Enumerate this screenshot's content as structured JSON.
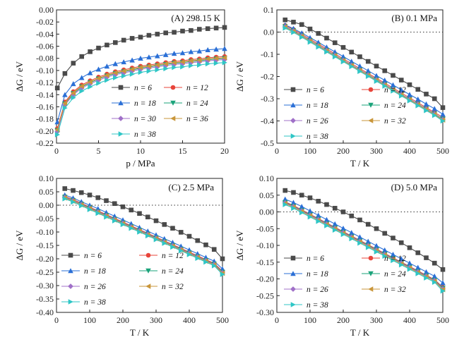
{
  "series_colors": {
    "n6": "#4a4a4a",
    "n12": "#e8443a",
    "n18": "#2a6fd6",
    "n24": "#1aa37a",
    "n26": "#a070c8",
    "n30": "#a070c8",
    "n32": "#c9963a",
    "n36": "#c9963a",
    "n38": "#2fc6c6"
  },
  "chart_data": [
    {
      "type": "line",
      "title": "(A) 298.15 K",
      "xlabel": "p / MPa",
      "ylabel": "ΔG / eV",
      "xlim": [
        0,
        20
      ],
      "ylim": [
        -0.22,
        0.0
      ],
      "xticks": [
        "0",
        "5",
        "10",
        "15",
        "20"
      ],
      "yticks": [
        "-0.22",
        "-0.20",
        "-0.18",
        "-0.16",
        "-0.14",
        "-0.12",
        "-0.10",
        "-0.08",
        "-0.06",
        "-0.04",
        "-0.02",
        "0.00"
      ],
      "x": [
        0.1,
        1,
        2,
        3,
        4,
        5,
        6,
        7,
        8,
        9,
        10,
        11,
        12,
        13,
        14,
        15,
        16,
        17,
        18,
        19,
        20
      ],
      "series": [
        {
          "name": "n = 6",
          "marker": "square",
          "values": [
            -0.129,
            -0.105,
            -0.088,
            -0.077,
            -0.069,
            -0.063,
            -0.058,
            -0.054,
            -0.05,
            -0.047,
            -0.045,
            -0.042,
            -0.04,
            -0.038,
            -0.037,
            -0.035,
            -0.034,
            -0.032,
            -0.031,
            -0.03,
            -0.029
          ]
        },
        {
          "name": "n = 12",
          "marker": "circle",
          "values": [
            -0.196,
            -0.152,
            -0.135,
            -0.124,
            -0.117,
            -0.111,
            -0.106,
            -0.102,
            -0.099,
            -0.096,
            -0.093,
            -0.091,
            -0.089,
            -0.087,
            -0.085,
            -0.084,
            -0.082,
            -0.081,
            -0.079,
            -0.078,
            -0.077
          ]
        },
        {
          "name": "n = 18",
          "marker": "triangle-up",
          "values": [
            -0.185,
            -0.14,
            -0.122,
            -0.112,
            -0.104,
            -0.098,
            -0.093,
            -0.089,
            -0.086,
            -0.083,
            -0.08,
            -0.078,
            -0.076,
            -0.074,
            -0.072,
            -0.071,
            -0.069,
            -0.068,
            -0.066,
            -0.065,
            -0.064
          ]
        },
        {
          "name": "n = 24",
          "marker": "triangle-down",
          "values": [
            -0.199,
            -0.155,
            -0.138,
            -0.127,
            -0.12,
            -0.114,
            -0.109,
            -0.105,
            -0.102,
            -0.099,
            -0.096,
            -0.094,
            -0.092,
            -0.09,
            -0.088,
            -0.087,
            -0.085,
            -0.084,
            -0.082,
            -0.081,
            -0.08
          ]
        },
        {
          "name": "n = 30",
          "marker": "diamond",
          "values": [
            -0.201,
            -0.157,
            -0.14,
            -0.129,
            -0.122,
            -0.116,
            -0.111,
            -0.107,
            -0.104,
            -0.101,
            -0.098,
            -0.096,
            -0.094,
            -0.092,
            -0.09,
            -0.089,
            -0.087,
            -0.086,
            -0.084,
            -0.083,
            -0.082
          ]
        },
        {
          "name": "n = 36",
          "marker": "triangle-left",
          "values": [
            -0.198,
            -0.154,
            -0.137,
            -0.126,
            -0.119,
            -0.113,
            -0.108,
            -0.104,
            -0.101,
            -0.098,
            -0.095,
            -0.093,
            -0.091,
            -0.089,
            -0.087,
            -0.086,
            -0.084,
            -0.083,
            -0.081,
            -0.08,
            -0.079
          ]
        },
        {
          "name": "n = 38",
          "marker": "triangle-right",
          "values": [
            -0.206,
            -0.162,
            -0.145,
            -0.134,
            -0.127,
            -0.121,
            -0.116,
            -0.112,
            -0.109,
            -0.106,
            -0.103,
            -0.101,
            -0.099,
            -0.097,
            -0.095,
            -0.094,
            -0.092,
            -0.091,
            -0.089,
            -0.088,
            -0.087
          ]
        }
      ],
      "legend_order": [
        0,
        1,
        2,
        3,
        4,
        5,
        6
      ],
      "reference_line": null
    },
    {
      "type": "line",
      "title": "(B) 0.1 MPa",
      "xlabel": "T / K",
      "ylabel": "ΔG / eV",
      "xlim": [
        0,
        500
      ],
      "ylim": [
        -0.5,
        0.1
      ],
      "xticks": [
        "0",
        "100",
        "200",
        "300",
        "400",
        "500"
      ],
      "yticks": [
        "-0.5",
        "-0.4",
        "-0.3",
        "-0.2",
        "-0.1",
        "0.0",
        "0.1"
      ],
      "x": [
        25,
        50,
        75,
        100,
        125,
        150,
        175,
        200,
        225,
        250,
        275,
        300,
        325,
        350,
        375,
        400,
        425,
        450,
        475,
        500
      ],
      "series": [
        {
          "name": "n = 6",
          "marker": "square",
          "values": [
            0.055,
            0.045,
            0.034,
            0.014,
            -0.006,
            -0.027,
            -0.048,
            -0.069,
            -0.09,
            -0.111,
            -0.132,
            -0.153,
            -0.174,
            -0.195,
            -0.216,
            -0.237,
            -0.258,
            -0.279,
            -0.3,
            -0.34
          ]
        },
        {
          "name": "n = 12",
          "marker": "circle",
          "values": [
            0.03,
            0.012,
            -0.01,
            -0.032,
            -0.054,
            -0.076,
            -0.098,
            -0.12,
            -0.142,
            -0.164,
            -0.186,
            -0.208,
            -0.23,
            -0.252,
            -0.274,
            -0.296,
            -0.318,
            -0.34,
            -0.362,
            -0.384
          ]
        },
        {
          "name": "n = 18",
          "marker": "triangle-up",
          "values": [
            0.032,
            0.016,
            -0.004,
            -0.025,
            -0.046,
            -0.068,
            -0.089,
            -0.11,
            -0.132,
            -0.153,
            -0.174,
            -0.196,
            -0.217,
            -0.238,
            -0.26,
            -0.281,
            -0.302,
            -0.324,
            -0.345,
            -0.37
          ]
        },
        {
          "name": "n = 24",
          "marker": "triangle-down",
          "values": [
            0.025,
            0.006,
            -0.016,
            -0.038,
            -0.06,
            -0.082,
            -0.104,
            -0.126,
            -0.148,
            -0.17,
            -0.192,
            -0.214,
            -0.236,
            -0.258,
            -0.28,
            -0.302,
            -0.324,
            -0.346,
            -0.368,
            -0.392
          ]
        },
        {
          "name": "n = 26",
          "marker": "diamond",
          "values": [
            0.024,
            0.005,
            -0.017,
            -0.039,
            -0.061,
            -0.083,
            -0.105,
            -0.127,
            -0.149,
            -0.171,
            -0.193,
            -0.215,
            -0.237,
            -0.259,
            -0.281,
            -0.303,
            -0.325,
            -0.347,
            -0.369,
            -0.394
          ]
        },
        {
          "name": "n = 32",
          "marker": "triangle-left",
          "values": [
            0.022,
            0.003,
            -0.019,
            -0.041,
            -0.063,
            -0.085,
            -0.107,
            -0.129,
            -0.151,
            -0.173,
            -0.195,
            -0.217,
            -0.239,
            -0.261,
            -0.283,
            -0.305,
            -0.327,
            -0.349,
            -0.371,
            -0.396
          ]
        },
        {
          "name": "n = 38",
          "marker": "triangle-right",
          "values": [
            0.018,
            -0.001,
            -0.023,
            -0.045,
            -0.067,
            -0.089,
            -0.111,
            -0.133,
            -0.155,
            -0.177,
            -0.199,
            -0.221,
            -0.243,
            -0.265,
            -0.287,
            -0.309,
            -0.331,
            -0.353,
            -0.375,
            -0.4
          ]
        }
      ],
      "legend_order": [
        0,
        1,
        2,
        3,
        4,
        5,
        6
      ],
      "reference_line": 0.0
    },
    {
      "type": "line",
      "title": "(C) 2.5 MPa",
      "xlabel": "T / K",
      "ylabel": "ΔG / eV",
      "xlim": [
        0,
        500
      ],
      "ylim": [
        -0.4,
        0.1
      ],
      "xticks": [
        "0",
        "100",
        "200",
        "300",
        "400",
        "500"
      ],
      "yticks": [
        "-0.40",
        "-0.35",
        "-0.30",
        "-0.25",
        "-0.20",
        "-0.15",
        "-0.10",
        "-0.05",
        "0.00",
        "0.05",
        "0.10"
      ],
      "x": [
        25,
        50,
        75,
        100,
        125,
        150,
        175,
        200,
        225,
        250,
        275,
        300,
        325,
        350,
        375,
        400,
        425,
        450,
        475,
        500
      ],
      "series": [
        {
          "name": "n = 6",
          "marker": "square",
          "values": [
            0.062,
            0.055,
            0.047,
            0.038,
            0.028,
            0.017,
            0.006,
            -0.006,
            -0.018,
            -0.031,
            -0.044,
            -0.058,
            -0.072,
            -0.086,
            -0.101,
            -0.116,
            -0.132,
            -0.148,
            -0.165,
            -0.2
          ]
        },
        {
          "name": "n = 12",
          "marker": "circle",
          "values": [
            0.033,
            0.021,
            0.007,
            -0.007,
            -0.021,
            -0.035,
            -0.049,
            -0.063,
            -0.077,
            -0.091,
            -0.105,
            -0.119,
            -0.133,
            -0.147,
            -0.161,
            -0.175,
            -0.189,
            -0.203,
            -0.217,
            -0.246
          ]
        },
        {
          "name": "n = 18",
          "marker": "triangle-up",
          "values": [
            0.038,
            0.027,
            0.013,
            0.0,
            -0.013,
            -0.027,
            -0.041,
            -0.055,
            -0.069,
            -0.083,
            -0.097,
            -0.111,
            -0.125,
            -0.139,
            -0.153,
            -0.167,
            -0.181,
            -0.195,
            -0.209,
            -0.238
          ]
        },
        {
          "name": "n = 24",
          "marker": "triangle-down",
          "values": [
            0.03,
            0.018,
            0.004,
            -0.01,
            -0.024,
            -0.038,
            -0.052,
            -0.066,
            -0.08,
            -0.094,
            -0.108,
            -0.122,
            -0.136,
            -0.15,
            -0.164,
            -0.178,
            -0.192,
            -0.206,
            -0.22,
            -0.25
          ]
        },
        {
          "name": "n = 26",
          "marker": "diamond",
          "values": [
            0.029,
            0.017,
            0.003,
            -0.011,
            -0.025,
            -0.039,
            -0.053,
            -0.067,
            -0.081,
            -0.095,
            -0.109,
            -0.123,
            -0.137,
            -0.151,
            -0.165,
            -0.179,
            -0.193,
            -0.207,
            -0.221,
            -0.252
          ]
        },
        {
          "name": "n = 32",
          "marker": "triangle-left",
          "values": [
            0.027,
            0.015,
            0.001,
            -0.013,
            -0.027,
            -0.041,
            -0.055,
            -0.069,
            -0.083,
            -0.097,
            -0.111,
            -0.125,
            -0.139,
            -0.153,
            -0.167,
            -0.181,
            -0.195,
            -0.209,
            -0.223,
            -0.254
          ]
        },
        {
          "name": "n = 38",
          "marker": "triangle-right",
          "values": [
            0.024,
            0.012,
            -0.002,
            -0.016,
            -0.03,
            -0.044,
            -0.058,
            -0.072,
            -0.086,
            -0.1,
            -0.114,
            -0.128,
            -0.142,
            -0.156,
            -0.17,
            -0.184,
            -0.198,
            -0.212,
            -0.226,
            -0.258
          ]
        }
      ],
      "legend_order": [
        0,
        1,
        2,
        3,
        4,
        5,
        6
      ],
      "reference_line": 0.0
    },
    {
      "type": "line",
      "title": "(D) 5.0 MPa",
      "xlabel": "T / K",
      "ylabel": "ΔG / eV",
      "xlim": [
        0,
        500
      ],
      "ylim": [
        -0.3,
        0.1
      ],
      "xticks": [
        "0",
        "100",
        "200",
        "300",
        "400",
        "500"
      ],
      "yticks": [
        "-0.30",
        "-0.25",
        "-0.20",
        "-0.15",
        "-0.10",
        "-0.05",
        "0.00",
        "0.05",
        "0.10"
      ],
      "x": [
        25,
        50,
        75,
        100,
        125,
        150,
        175,
        200,
        225,
        250,
        275,
        300,
        325,
        350,
        375,
        400,
        425,
        450,
        475,
        500
      ],
      "series": [
        {
          "name": "n = 6",
          "marker": "square",
          "values": [
            0.064,
            0.058,
            0.05,
            0.042,
            0.032,
            0.022,
            0.011,
            0.0,
            -0.012,
            -0.024,
            -0.037,
            -0.05,
            -0.064,
            -0.078,
            -0.092,
            -0.107,
            -0.122,
            -0.137,
            -0.153,
            -0.172
          ]
        },
        {
          "name": "n = 12",
          "marker": "circle",
          "values": [
            0.03,
            0.019,
            0.006,
            -0.007,
            -0.02,
            -0.033,
            -0.046,
            -0.059,
            -0.072,
            -0.085,
            -0.098,
            -0.111,
            -0.124,
            -0.137,
            -0.15,
            -0.163,
            -0.176,
            -0.189,
            -0.202,
            -0.225
          ]
        },
        {
          "name": "n = 18",
          "marker": "triangle-up",
          "values": [
            0.038,
            0.028,
            0.016,
            0.003,
            -0.01,
            -0.023,
            -0.036,
            -0.049,
            -0.062,
            -0.075,
            -0.088,
            -0.101,
            -0.114,
            -0.127,
            -0.14,
            -0.153,
            -0.166,
            -0.179,
            -0.192,
            -0.212
          ]
        },
        {
          "name": "n = 24",
          "marker": "triangle-down",
          "values": [
            0.028,
            0.017,
            0.004,
            -0.009,
            -0.022,
            -0.035,
            -0.048,
            -0.061,
            -0.074,
            -0.087,
            -0.1,
            -0.113,
            -0.126,
            -0.139,
            -0.152,
            -0.165,
            -0.178,
            -0.191,
            -0.204,
            -0.228
          ]
        },
        {
          "name": "n = 26",
          "marker": "diamond",
          "values": [
            0.027,
            0.016,
            0.003,
            -0.01,
            -0.023,
            -0.036,
            -0.049,
            -0.062,
            -0.075,
            -0.088,
            -0.101,
            -0.114,
            -0.127,
            -0.14,
            -0.153,
            -0.166,
            -0.179,
            -0.192,
            -0.205,
            -0.23
          ]
        },
        {
          "name": "n = 32",
          "marker": "triangle-left",
          "values": [
            0.025,
            0.014,
            0.001,
            -0.012,
            -0.025,
            -0.038,
            -0.051,
            -0.064,
            -0.077,
            -0.09,
            -0.103,
            -0.116,
            -0.129,
            -0.142,
            -0.155,
            -0.168,
            -0.181,
            -0.194,
            -0.207,
            -0.232
          ]
        },
        {
          "name": "n = 38",
          "marker": "triangle-right",
          "values": [
            0.022,
            0.011,
            -0.002,
            -0.015,
            -0.028,
            -0.041,
            -0.054,
            -0.067,
            -0.08,
            -0.093,
            -0.106,
            -0.119,
            -0.132,
            -0.145,
            -0.158,
            -0.171,
            -0.184,
            -0.197,
            -0.21,
            -0.236
          ]
        }
      ],
      "legend_order": [
        0,
        1,
        2,
        3,
        4,
        5,
        6
      ],
      "reference_line": 0.0
    }
  ]
}
